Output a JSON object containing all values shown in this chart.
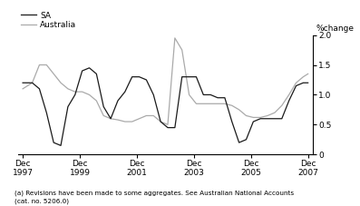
{
  "sa_x": [
    1997.917,
    1998.25,
    1998.5,
    1998.75,
    1999.0,
    1999.25,
    1999.5,
    1999.75,
    2000.0,
    2000.25,
    2000.5,
    2000.75,
    2001.0,
    2001.25,
    2001.5,
    2001.75,
    2002.0,
    2002.25,
    2002.5,
    2002.75,
    2003.0,
    2003.25,
    2003.5,
    2003.75,
    2004.0,
    2004.25,
    2004.5,
    2004.75,
    2005.0,
    2005.25,
    2005.5,
    2005.75,
    2006.0,
    2006.25,
    2006.5,
    2006.75,
    2007.0,
    2007.25,
    2007.5,
    2007.75,
    2007.917
  ],
  "sa_y": [
    1.2,
    1.2,
    1.1,
    0.7,
    0.2,
    0.15,
    0.8,
    1.0,
    1.4,
    1.45,
    1.35,
    0.8,
    0.6,
    0.9,
    1.05,
    1.3,
    1.3,
    1.25,
    1.0,
    0.55,
    0.45,
    0.45,
    1.3,
    1.3,
    1.3,
    1.0,
    1.0,
    0.95,
    0.95,
    0.55,
    0.2,
    0.25,
    0.55,
    0.6,
    0.6,
    0.6,
    0.6,
    0.9,
    1.15,
    1.2,
    1.2
  ],
  "aus_x": [
    1997.917,
    1998.25,
    1998.5,
    1998.75,
    1999.0,
    1999.25,
    1999.5,
    1999.75,
    2000.0,
    2000.25,
    2000.5,
    2000.75,
    2001.0,
    2001.25,
    2001.5,
    2001.75,
    2002.0,
    2002.25,
    2002.5,
    2002.75,
    2003.0,
    2003.25,
    2003.5,
    2003.75,
    2004.0,
    2004.25,
    2004.5,
    2004.75,
    2005.0,
    2005.25,
    2005.5,
    2005.75,
    2006.0,
    2006.25,
    2006.5,
    2006.75,
    2007.0,
    2007.25,
    2007.5,
    2007.75,
    2007.917
  ],
  "aus_y": [
    1.1,
    1.2,
    1.5,
    1.5,
    1.35,
    1.2,
    1.1,
    1.05,
    1.05,
    1.0,
    0.9,
    0.65,
    0.6,
    0.58,
    0.55,
    0.55,
    0.6,
    0.65,
    0.65,
    0.55,
    0.5,
    1.95,
    1.75,
    1.0,
    0.85,
    0.85,
    0.85,
    0.85,
    0.85,
    0.82,
    0.75,
    0.65,
    0.62,
    0.62,
    0.65,
    0.7,
    0.82,
    1.0,
    1.2,
    1.3,
    1.35
  ],
  "sa_color": "#1a1a1a",
  "aus_color": "#aaaaaa",
  "sa_label": "SA",
  "aus_label": "Australia",
  "ylabel": "%change",
  "ylim": [
    0,
    2.0
  ],
  "yticks": [
    0,
    0.5,
    1.0,
    1.5,
    2.0
  ],
  "xlim": [
    1997.75,
    2008.1
  ],
  "xtick_positions": [
    1997.917,
    1999.917,
    2001.917,
    2003.917,
    2005.917,
    2007.917
  ],
  "xtick_labels": [
    "Dec\n1997",
    "Dec\n1999",
    "Dec\n2001",
    "Dec\n2003",
    "Dec\n2005",
    "Dec\n2007"
  ],
  "footnote": "(a) Revisions have been made to some aggregates. See Australian National Accounts\n(cat. no. 5206.0)",
  "bg_color": "#ffffff",
  "sa_linewidth": 0.9,
  "aus_linewidth": 0.9
}
